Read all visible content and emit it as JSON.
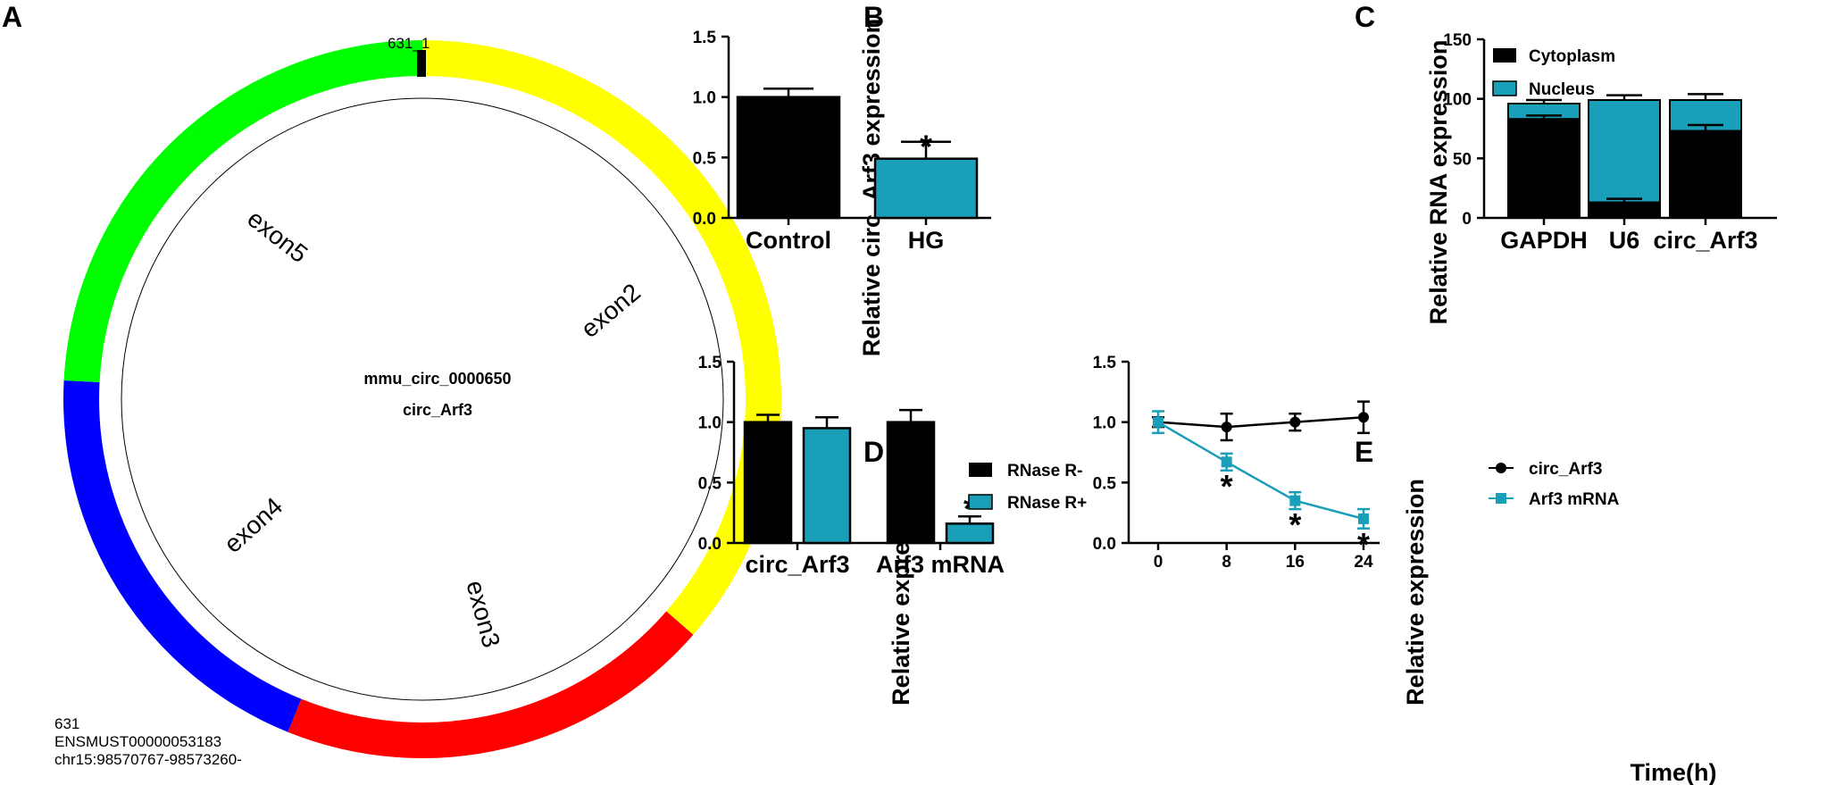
{
  "colors": {
    "black": "#000000",
    "teal": "#1a9fb8",
    "exon2": "#ffff00",
    "exon3": "#ff0000",
    "exon4": "#0000ff",
    "exon5": "#00ff00"
  },
  "panel_labels": [
    "A",
    "B",
    "C",
    "D",
    "E"
  ],
  "circle": {
    "marker_label": "631_1",
    "center_line1": "mmu_circ_0000650",
    "center_line2": "circ_Arf3",
    "exon_labels": [
      "exon2",
      "exon3",
      "exon4",
      "exon5"
    ],
    "info": [
      "631",
      "ENSMUST00000053183",
      "chr15:98570767-98573260-"
    ]
  },
  "chart_data": [
    {
      "panel": "B",
      "type": "bar",
      "categories": [
        "Control",
        "HG"
      ],
      "values": [
        1.0,
        0.49
      ],
      "errors": [
        0.07,
        0.14
      ],
      "significance": [
        "",
        "*"
      ],
      "ylabel": "Relative circ_Arf3 expression",
      "ylim": [
        0,
        1.5
      ],
      "yticks": [
        "0.0",
        "0.5",
        "1.0",
        "1.5"
      ]
    },
    {
      "panel": "C",
      "type": "bar",
      "stacked": true,
      "categories": [
        "GAPDH",
        "U6",
        "circ_Arf3"
      ],
      "series": [
        {
          "name": "Cytoplasm",
          "values": [
            83,
            13,
            73
          ],
          "errors": [
            3,
            3,
            5
          ]
        },
        {
          "name": "Nucleus",
          "values": [
            13,
            86,
            26
          ],
          "errors": [
            3,
            4,
            5
          ]
        }
      ],
      "ylabel": "Relative RNA expression",
      "ylim": [
        0,
        150
      ],
      "yticks": [
        "0",
        "50",
        "100",
        "150"
      ],
      "legend": "top-left"
    },
    {
      "panel": "D",
      "type": "bar",
      "categories": [
        "circ_Arf3",
        "Arf3 mRNA"
      ],
      "series": [
        {
          "name": "RNase R-",
          "values": [
            1.0,
            1.0
          ],
          "errors": [
            0.06,
            0.1
          ]
        },
        {
          "name": "RNase R+",
          "values": [
            0.95,
            0.16
          ],
          "errors": [
            0.09,
            0.06
          ]
        }
      ],
      "significance": [
        [
          "",
          ""
        ],
        [
          "",
          "*"
        ]
      ],
      "ylabel": "Relative expression",
      "ylim": [
        0,
        1.5
      ],
      "yticks": [
        "0.0",
        "0.5",
        "1.0",
        "1.5"
      ],
      "legend": "top-left"
    },
    {
      "panel": "E",
      "type": "line",
      "x": [
        0,
        8,
        16,
        24
      ],
      "xticks": [
        "0",
        "8",
        "16",
        "24"
      ],
      "series": [
        {
          "name": "circ_Arf3",
          "values": [
            1.0,
            0.96,
            1.0,
            1.04
          ],
          "errors": [
            0.04,
            0.11,
            0.07,
            0.13
          ],
          "marker": "circle"
        },
        {
          "name": "Arf3 mRNA",
          "values": [
            1.0,
            0.67,
            0.35,
            0.2
          ],
          "errors": [
            0.09,
            0.07,
            0.07,
            0.08
          ],
          "marker": "square",
          "significance": [
            "",
            "*",
            "*",
            "*"
          ]
        }
      ],
      "xlabel": "Time(h)",
      "ylabel": "Relative expression",
      "xlim": [
        0,
        24
      ],
      "ylim": [
        0,
        1.5
      ],
      "yticks": [
        "0.0",
        "0.5",
        "1.0",
        "1.5"
      ],
      "legend": "top-left"
    }
  ]
}
